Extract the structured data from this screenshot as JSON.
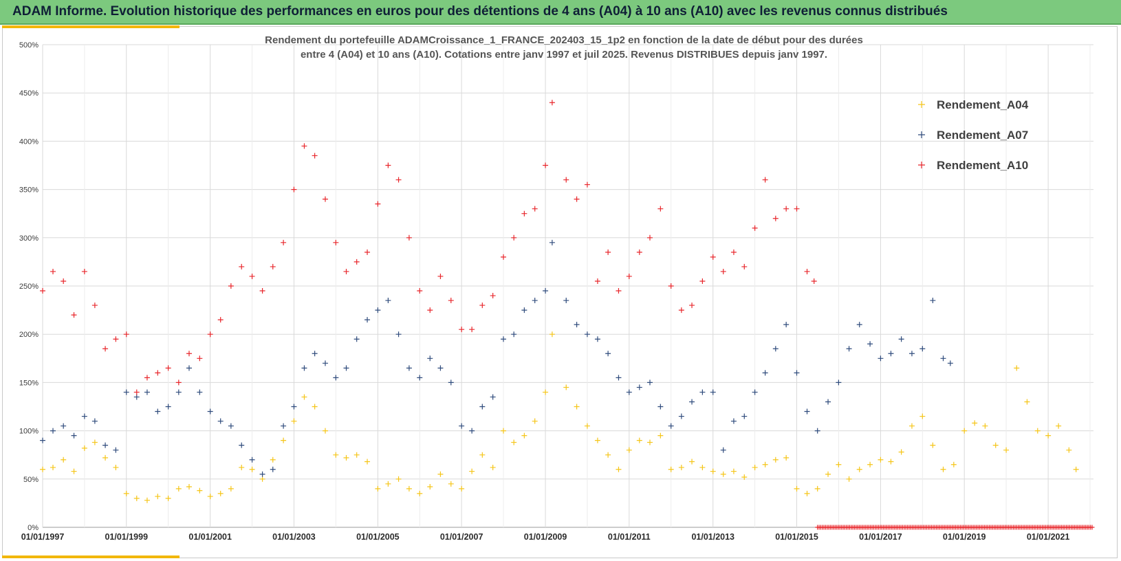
{
  "header": {
    "title": "ADAM Informe. Evolution historique des performances en euros pour des détentions de 4 ans (A04) à 10 ans (A10) avec les revenus connus distribués"
  },
  "colors": {
    "banner": "#7cc97e",
    "accent": "#f2b705",
    "A04": "#f5c518",
    "A07": "#2f4b7c",
    "A10": "#e8262b"
  },
  "chart_data": {
    "type": "scatter",
    "title_lines": [
      "Rendement du portefeuille ADAMCroissance_1_FRANCE_202403_15_1p2  en fonction de la date de début pour des durées",
      "entre 4 (A04) et 10 ans (A10). Cotations  entre janv 1997 et juil 2025. Revenus DISTRIBUES depuis janv 1997."
    ],
    "xlabel": "",
    "ylabel": "",
    "x_range": [
      "1997-01-01",
      "2022-01-31"
    ],
    "ylim": [
      0,
      500
    ],
    "y_ticks": [
      "0%",
      "50%",
      "100%",
      "150%",
      "200%",
      "250%",
      "300%",
      "350%",
      "400%",
      "450%",
      "500%"
    ],
    "x_ticks": [
      "01/01/1997",
      "01/01/1999",
      "01/01/2001",
      "01/01/2003",
      "01/01/2005",
      "01/01/2007",
      "01/01/2009",
      "01/01/2011",
      "01/01/2013",
      "01/01/2015",
      "01/01/2017",
      "01/01/2019",
      "01/01/2021"
    ],
    "grid": true,
    "legend_position": "top-right",
    "marker": "+",
    "series": [
      {
        "name": "Rendement_A04",
        "color": "#f5c518",
        "points": [
          [
            "1997-01-01",
            60
          ],
          [
            "1997-04-01",
            62
          ],
          [
            "1997-07-01",
            70
          ],
          [
            "1997-10-01",
            58
          ],
          [
            "1998-01-01",
            82
          ],
          [
            "1998-04-01",
            88
          ],
          [
            "1998-07-01",
            72
          ],
          [
            "1998-10-01",
            62
          ],
          [
            "1999-01-01",
            35
          ],
          [
            "1999-04-01",
            30
          ],
          [
            "1999-07-01",
            28
          ],
          [
            "1999-10-01",
            32
          ],
          [
            "2000-01-01",
            30
          ],
          [
            "2000-04-01",
            40
          ],
          [
            "2000-07-01",
            42
          ],
          [
            "2000-10-01",
            38
          ],
          [
            "2001-01-01",
            32
          ],
          [
            "2001-04-01",
            35
          ],
          [
            "2001-07-01",
            40
          ],
          [
            "2001-10-01",
            62
          ],
          [
            "2002-01-01",
            60
          ],
          [
            "2002-04-01",
            50
          ],
          [
            "2002-07-01",
            70
          ],
          [
            "2002-10-01",
            90
          ],
          [
            "2003-01-01",
            110
          ],
          [
            "2003-04-01",
            135
          ],
          [
            "2003-07-01",
            125
          ],
          [
            "2003-10-01",
            100
          ],
          [
            "2004-01-01",
            75
          ],
          [
            "2004-04-01",
            72
          ],
          [
            "2004-07-01",
            75
          ],
          [
            "2004-10-01",
            68
          ],
          [
            "2005-01-01",
            40
          ],
          [
            "2005-04-01",
            45
          ],
          [
            "2005-07-01",
            50
          ],
          [
            "2005-10-01",
            40
          ],
          [
            "2006-01-01",
            35
          ],
          [
            "2006-04-01",
            42
          ],
          [
            "2006-07-01",
            55
          ],
          [
            "2006-10-01",
            45
          ],
          [
            "2007-01-01",
            40
          ],
          [
            "2007-04-01",
            58
          ],
          [
            "2007-07-01",
            75
          ],
          [
            "2007-10-01",
            62
          ],
          [
            "2008-01-01",
            100
          ],
          [
            "2008-04-01",
            88
          ],
          [
            "2008-07-01",
            95
          ],
          [
            "2008-10-01",
            110
          ],
          [
            "2009-01-01",
            140
          ],
          [
            "2009-03-01",
            200
          ],
          [
            "2009-07-01",
            145
          ],
          [
            "2009-10-01",
            125
          ],
          [
            "2010-01-01",
            105
          ],
          [
            "2010-04-01",
            90
          ],
          [
            "2010-07-01",
            75
          ],
          [
            "2010-10-01",
            60
          ],
          [
            "2011-01-01",
            80
          ],
          [
            "2011-04-01",
            90
          ],
          [
            "2011-07-01",
            88
          ],
          [
            "2011-10-01",
            95
          ],
          [
            "2012-01-01",
            60
          ],
          [
            "2012-04-01",
            62
          ],
          [
            "2012-07-01",
            68
          ],
          [
            "2012-10-01",
            62
          ],
          [
            "2013-01-01",
            58
          ],
          [
            "2013-04-01",
            55
          ],
          [
            "2013-07-01",
            58
          ],
          [
            "2013-10-01",
            52
          ],
          [
            "2014-01-01",
            62
          ],
          [
            "2014-04-01",
            65
          ],
          [
            "2014-07-01",
            70
          ],
          [
            "2014-10-01",
            72
          ],
          [
            "2015-01-01",
            40
          ],
          [
            "2015-04-01",
            35
          ],
          [
            "2015-07-01",
            40
          ],
          [
            "2015-10-01",
            55
          ],
          [
            "2016-01-01",
            65
          ],
          [
            "2016-04-01",
            50
          ],
          [
            "2016-07-01",
            60
          ],
          [
            "2016-10-01",
            65
          ],
          [
            "2017-01-01",
            70
          ],
          [
            "2017-04-01",
            68
          ],
          [
            "2017-07-01",
            78
          ],
          [
            "2017-10-01",
            105
          ],
          [
            "2018-01-01",
            115
          ],
          [
            "2018-04-01",
            85
          ],
          [
            "2018-07-01",
            60
          ],
          [
            "2018-10-01",
            65
          ],
          [
            "2019-01-01",
            100
          ],
          [
            "2019-04-01",
            108
          ],
          [
            "2019-07-01",
            105
          ],
          [
            "2019-10-01",
            85
          ],
          [
            "2020-01-01",
            80
          ],
          [
            "2020-04-01",
            165
          ],
          [
            "2020-07-01",
            130
          ],
          [
            "2020-10-01",
            100
          ],
          [
            "2021-01-01",
            95
          ],
          [
            "2021-04-01",
            105
          ],
          [
            "2021-07-01",
            80
          ],
          [
            "2021-09-01",
            60
          ]
        ]
      },
      {
        "name": "Rendement_A07",
        "color": "#2f4b7c",
        "points": [
          [
            "1997-01-01",
            90
          ],
          [
            "1997-04-01",
            100
          ],
          [
            "1997-07-01",
            105
          ],
          [
            "1997-10-01",
            95
          ],
          [
            "1998-01-01",
            115
          ],
          [
            "1998-04-01",
            110
          ],
          [
            "1998-07-01",
            85
          ],
          [
            "1998-10-01",
            80
          ],
          [
            "1999-01-01",
            140
          ],
          [
            "1999-04-01",
            135
          ],
          [
            "1999-07-01",
            140
          ],
          [
            "1999-10-01",
            120
          ],
          [
            "2000-01-01",
            125
          ],
          [
            "2000-04-01",
            140
          ],
          [
            "2000-07-01",
            165
          ],
          [
            "2000-10-01",
            140
          ],
          [
            "2001-01-01",
            120
          ],
          [
            "2001-04-01",
            110
          ],
          [
            "2001-07-01",
            105
          ],
          [
            "2001-10-01",
            85
          ],
          [
            "2002-01-01",
            70
          ],
          [
            "2002-04-01",
            55
          ],
          [
            "2002-07-01",
            60
          ],
          [
            "2002-10-01",
            105
          ],
          [
            "2003-01-01",
            125
          ],
          [
            "2003-04-01",
            165
          ],
          [
            "2003-07-01",
            180
          ],
          [
            "2003-10-01",
            170
          ],
          [
            "2004-01-01",
            155
          ],
          [
            "2004-04-01",
            165
          ],
          [
            "2004-07-01",
            195
          ],
          [
            "2004-10-01",
            215
          ],
          [
            "2005-01-01",
            225
          ],
          [
            "2005-04-01",
            235
          ],
          [
            "2005-07-01",
            200
          ],
          [
            "2005-10-01",
            165
          ],
          [
            "2006-01-01",
            155
          ],
          [
            "2006-04-01",
            175
          ],
          [
            "2006-07-01",
            165
          ],
          [
            "2006-10-01",
            150
          ],
          [
            "2007-01-01",
            105
          ],
          [
            "2007-04-01",
            100
          ],
          [
            "2007-07-01",
            125
          ],
          [
            "2007-10-01",
            135
          ],
          [
            "2008-01-01",
            195
          ],
          [
            "2008-04-01",
            200
          ],
          [
            "2008-07-01",
            225
          ],
          [
            "2008-10-01",
            235
          ],
          [
            "2009-01-01",
            245
          ],
          [
            "2009-03-01",
            295
          ],
          [
            "2009-07-01",
            235
          ],
          [
            "2009-10-01",
            210
          ],
          [
            "2010-01-01",
            200
          ],
          [
            "2010-04-01",
            195
          ],
          [
            "2010-07-01",
            180
          ],
          [
            "2010-10-01",
            155
          ],
          [
            "2011-01-01",
            140
          ],
          [
            "2011-04-01",
            145
          ],
          [
            "2011-07-01",
            150
          ],
          [
            "2011-10-01",
            125
          ],
          [
            "2012-01-01",
            105
          ],
          [
            "2012-04-01",
            115
          ],
          [
            "2012-07-01",
            130
          ],
          [
            "2012-10-01",
            140
          ],
          [
            "2013-01-01",
            140
          ],
          [
            "2013-04-01",
            80
          ],
          [
            "2013-07-01",
            110
          ],
          [
            "2013-10-01",
            115
          ],
          [
            "2014-01-01",
            140
          ],
          [
            "2014-04-01",
            160
          ],
          [
            "2014-07-01",
            185
          ],
          [
            "2014-10-01",
            210
          ],
          [
            "2015-01-01",
            160
          ],
          [
            "2015-04-01",
            120
          ],
          [
            "2015-07-01",
            100
          ],
          [
            "2015-10-01",
            130
          ],
          [
            "2016-01-01",
            150
          ],
          [
            "2016-04-01",
            185
          ],
          [
            "2016-07-01",
            210
          ],
          [
            "2016-10-01",
            190
          ],
          [
            "2017-01-01",
            175
          ],
          [
            "2017-04-01",
            180
          ],
          [
            "2017-07-01",
            195
          ],
          [
            "2017-10-01",
            180
          ],
          [
            "2018-01-01",
            185
          ],
          [
            "2018-04-01",
            235
          ],
          [
            "2018-07-01",
            175
          ],
          [
            "2018-09-01",
            170
          ]
        ]
      },
      {
        "name": "Rendement_A10",
        "color": "#e8262b",
        "points": [
          [
            "1997-01-01",
            245
          ],
          [
            "1997-04-01",
            265
          ],
          [
            "1997-07-01",
            255
          ],
          [
            "1997-10-01",
            220
          ],
          [
            "1998-01-01",
            265
          ],
          [
            "1998-04-01",
            230
          ],
          [
            "1998-07-01",
            185
          ],
          [
            "1998-10-01",
            195
          ],
          [
            "1999-01-01",
            200
          ],
          [
            "1999-04-01",
            140
          ],
          [
            "1999-07-01",
            155
          ],
          [
            "1999-10-01",
            160
          ],
          [
            "2000-01-01",
            165
          ],
          [
            "2000-04-01",
            150
          ],
          [
            "2000-07-01",
            180
          ],
          [
            "2000-10-01",
            175
          ],
          [
            "2001-01-01",
            200
          ],
          [
            "2001-04-01",
            215
          ],
          [
            "2001-07-01",
            250
          ],
          [
            "2001-10-01",
            270
          ],
          [
            "2002-01-01",
            260
          ],
          [
            "2002-04-01",
            245
          ],
          [
            "2002-07-01",
            270
          ],
          [
            "2002-10-01",
            295
          ],
          [
            "2003-01-01",
            350
          ],
          [
            "2003-04-01",
            395
          ],
          [
            "2003-07-01",
            385
          ],
          [
            "2003-10-01",
            340
          ],
          [
            "2004-01-01",
            295
          ],
          [
            "2004-04-01",
            265
          ],
          [
            "2004-07-01",
            275
          ],
          [
            "2004-10-01",
            285
          ],
          [
            "2005-01-01",
            335
          ],
          [
            "2005-04-01",
            375
          ],
          [
            "2005-07-01",
            360
          ],
          [
            "2005-10-01",
            300
          ],
          [
            "2006-01-01",
            245
          ],
          [
            "2006-04-01",
            225
          ],
          [
            "2006-07-01",
            260
          ],
          [
            "2006-10-01",
            235
          ],
          [
            "2007-01-01",
            205
          ],
          [
            "2007-04-01",
            205
          ],
          [
            "2007-07-01",
            230
          ],
          [
            "2007-10-01",
            240
          ],
          [
            "2008-01-01",
            280
          ],
          [
            "2008-04-01",
            300
          ],
          [
            "2008-07-01",
            325
          ],
          [
            "2008-10-01",
            330
          ],
          [
            "2009-01-01",
            375
          ],
          [
            "2009-03-01",
            440
          ],
          [
            "2009-07-01",
            360
          ],
          [
            "2009-10-01",
            340
          ],
          [
            "2010-01-01",
            355
          ],
          [
            "2010-04-01",
            255
          ],
          [
            "2010-07-01",
            285
          ],
          [
            "2010-10-01",
            245
          ],
          [
            "2011-01-01",
            260
          ],
          [
            "2011-04-01",
            285
          ],
          [
            "2011-07-01",
            300
          ],
          [
            "2011-10-01",
            330
          ],
          [
            "2012-01-01",
            250
          ],
          [
            "2012-04-01",
            225
          ],
          [
            "2012-07-01",
            230
          ],
          [
            "2012-10-01",
            255
          ],
          [
            "2013-01-01",
            280
          ],
          [
            "2013-04-01",
            265
          ],
          [
            "2013-07-01",
            285
          ],
          [
            "2013-10-01",
            270
          ],
          [
            "2014-01-01",
            310
          ],
          [
            "2014-04-01",
            360
          ],
          [
            "2014-07-01",
            320
          ],
          [
            "2014-10-01",
            330
          ],
          [
            "2015-01-01",
            330
          ],
          [
            "2015-04-01",
            265
          ],
          [
            "2015-06-01",
            255
          ]
        ],
        "zero_from": "2015-07-01",
        "zero_to": "2022-01-31"
      }
    ]
  }
}
